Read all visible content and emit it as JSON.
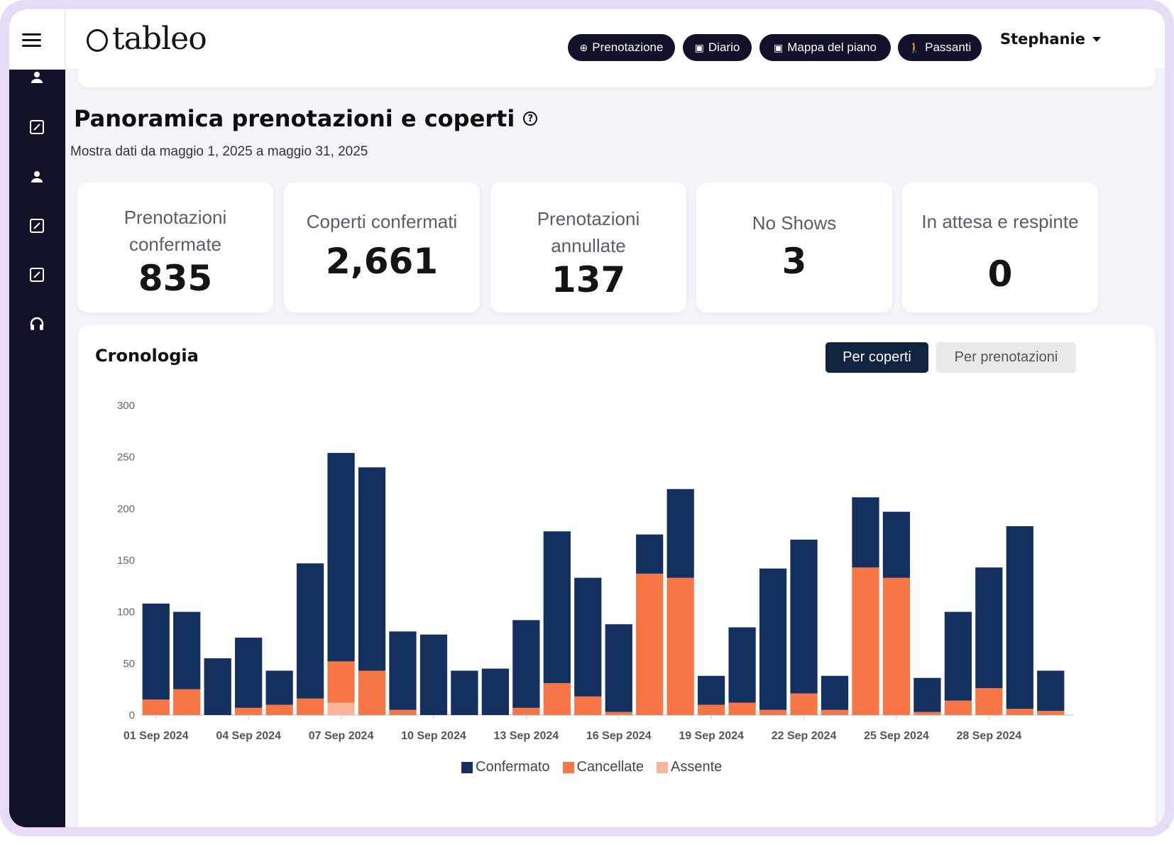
{
  "app": {
    "logo_text": "tableo"
  },
  "nav": {
    "buttons": [
      {
        "label": "Prenotazione",
        "icon": "plus-circle-icon"
      },
      {
        "label": "Diario",
        "icon": "calendar-icon"
      },
      {
        "label": "Mappa del piano",
        "icon": "calendar-icon"
      },
      {
        "label": "Passanti",
        "icon": "walking-icon"
      }
    ],
    "user_name": "Stephanie"
  },
  "sidebar": {
    "icons": [
      "user-icon",
      "edit-icon",
      "user-icon",
      "edit-icon",
      "edit-icon",
      "headset-icon"
    ]
  },
  "page": {
    "title": "Panoramica prenotazioni e coperti",
    "subtitle": "Mostra dati da maggio 1, 2025 a maggio 31, 2025"
  },
  "cards": [
    {
      "label": "Prenotazioni confermate",
      "value": "835"
    },
    {
      "label": "Coperti confermati",
      "value": "2,661"
    },
    {
      "label": "Prenotazioni annullate",
      "value": "137"
    },
    {
      "label": "No Shows",
      "value": "3"
    },
    {
      "label": "In attesa e respinte",
      "value": "0"
    }
  ],
  "timeline": {
    "title": "Cronologia",
    "toggle_active": "Per coperti",
    "toggle_inactive": "Per prenotazioni"
  },
  "colors": {
    "confirmed": "#14305e",
    "cancelled": "#f77645",
    "absent": "#f9b49a",
    "sidebar": "#11112a"
  },
  "chart_data": {
    "type": "bar",
    "stacked": true,
    "categories": [
      "01 Sep 2024",
      "02 Sep 2024",
      "03 Sep 2024",
      "04 Sep 2024",
      "05 Sep 2024",
      "06 Sep 2024",
      "07 Sep 2024",
      "08 Sep 2024",
      "09 Sep 2024",
      "10 Sep 2024",
      "11 Sep 2024",
      "12 Sep 2024",
      "13 Sep 2024",
      "14 Sep 2024",
      "15 Sep 2024",
      "16 Sep 2024",
      "17 Sep 2024",
      "18 Sep 2024",
      "19 Sep 2024",
      "20 Sep 2024",
      "21 Sep 2024",
      "22 Sep 2024",
      "23 Sep 2024",
      "24 Sep 2024",
      "25 Sep 2024",
      "26 Sep 2024",
      "27 Sep 2024",
      "28 Sep 2024",
      "29 Sep 2024",
      "30 Sep 2024"
    ],
    "tick_labels": [
      "01 Sep 2024",
      "04 Sep 2024",
      "07 Sep 2024",
      "10 Sep 2024",
      "13 Sep 2024",
      "16 Sep 2024",
      "19 Sep 2024",
      "22 Sep 2024",
      "25 Sep 2024",
      "28 Sep 2024"
    ],
    "series": [
      {
        "name": "Assente",
        "values": [
          0,
          0,
          0,
          0,
          0,
          0,
          12,
          0,
          0,
          0,
          0,
          0,
          0,
          0,
          0,
          0,
          0,
          0,
          0,
          0,
          0,
          0,
          0,
          0,
          0,
          0,
          0,
          0,
          0,
          0
        ]
      },
      {
        "name": "Cancellate",
        "values": [
          15,
          25,
          0,
          7,
          10,
          16,
          40,
          43,
          5,
          0,
          0,
          0,
          7,
          31,
          18,
          3,
          137,
          133,
          10,
          12,
          5,
          21,
          5,
          143,
          133,
          3,
          14,
          26,
          6,
          4
        ]
      },
      {
        "name": "Confermato",
        "values": [
          93,
          75,
          55,
          68,
          33,
          131,
          202,
          197,
          76,
          78,
          43,
          45,
          85,
          147,
          115,
          85,
          38,
          86,
          28,
          73,
          137,
          149,
          33,
          68,
          64,
          33,
          86,
          117,
          177,
          39
        ]
      }
    ],
    "yticks": [
      0,
      50,
      100,
      150,
      200,
      250,
      300
    ],
    "ylim": [
      0,
      300
    ],
    "legend": [
      "Confermato",
      "Cancellate",
      "Assente"
    ],
    "legend_position": "bottom-center",
    "grid": false
  }
}
